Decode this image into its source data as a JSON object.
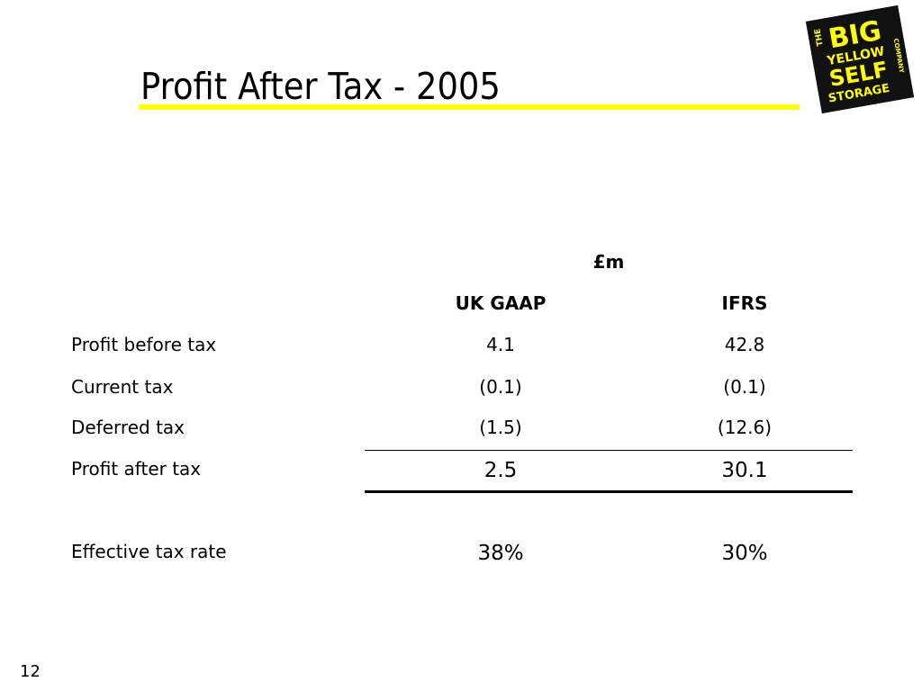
{
  "slide": {
    "title": "Profit After Tax - 2005",
    "page_number": "12",
    "accent_color": "#ffff00"
  },
  "logo": {
    "icon": "big-yellow-self-storage-logo",
    "lines": [
      "THE",
      "BIG",
      "YELLOW",
      "SELF",
      "STORAGE",
      "COMPANY"
    ],
    "background": "#111111",
    "text_color": "#ffff00"
  },
  "table": {
    "unit": "£m",
    "columns": [
      "UK GAAP",
      "IFRS"
    ],
    "rows": [
      {
        "label": "Profit before tax",
        "values": [
          "4.1",
          "42.8"
        ]
      },
      {
        "label": "Current tax",
        "values": [
          "(0.1)",
          "(0.1)"
        ]
      },
      {
        "label": "Deferred tax",
        "values": [
          "(1.5)",
          "(12.6)"
        ]
      },
      {
        "label": "Profit after tax",
        "values": [
          "2.5",
          "30.1"
        ]
      },
      {
        "label": "Effective tax rate",
        "values": [
          "38%",
          "30%"
        ]
      }
    ]
  }
}
